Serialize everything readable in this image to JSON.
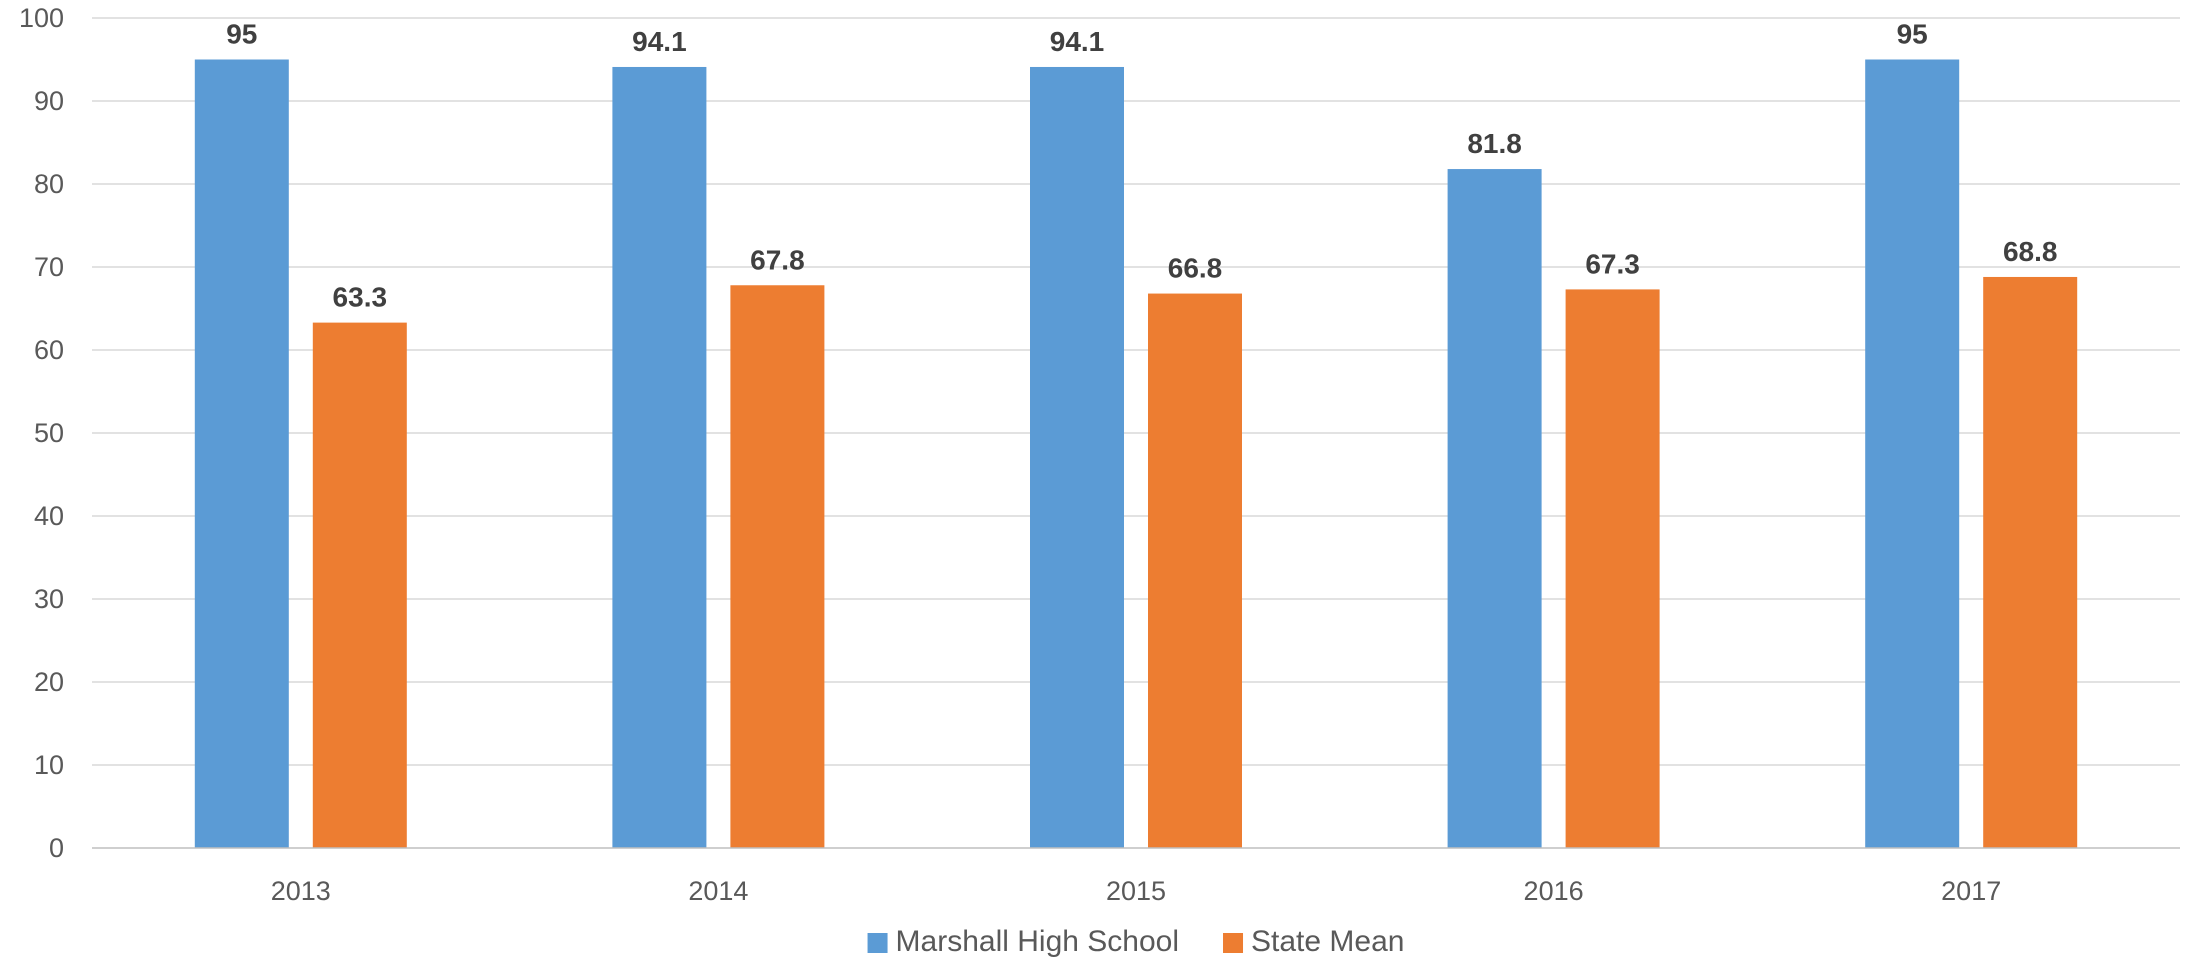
{
  "chart_data": {
    "type": "bar",
    "title": "",
    "xlabel": "",
    "ylabel": "",
    "categories": [
      "2013",
      "2014",
      "2015",
      "2016",
      "2017"
    ],
    "series": [
      {
        "name": "Marshall High School",
        "color": "#5b9bd5",
        "values": [
          95,
          94.1,
          94.1,
          81.8,
          95
        ]
      },
      {
        "name": "State Mean",
        "color": "#ed7d31",
        "values": [
          63.3,
          67.8,
          66.8,
          67.3,
          68.8
        ]
      }
    ],
    "ylim": [
      0,
      100
    ],
    "yticks": [
      0,
      10,
      20,
      30,
      40,
      50,
      60,
      70,
      80,
      90,
      100
    ],
    "grid": true,
    "data_labels": true,
    "legend_position": "bottom"
  }
}
